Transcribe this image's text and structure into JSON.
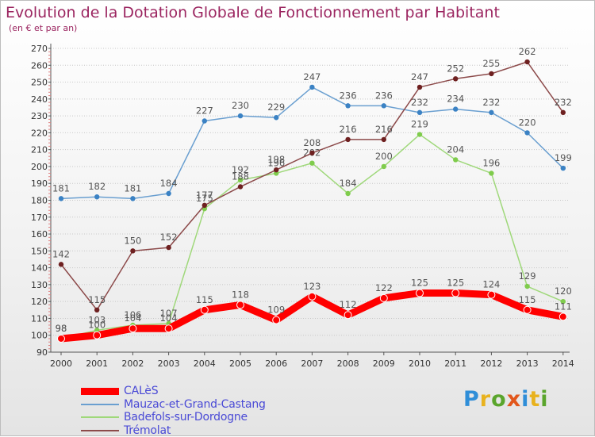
{
  "header": {
    "title": "Evolution de la Dotation Globale de Fonctionnement par Habitant",
    "subtitle": "(en € et par an)"
  },
  "logo_text": "Proxiti",
  "chart_data": {
    "type": "line",
    "title": "Evolution de la Dotation Globale de Fonctionnement par Habitant",
    "subtitle": "(en € et par an)",
    "xlabel": "",
    "ylabel": "",
    "x": [
      "2000",
      "2001",
      "2002",
      "2003",
      "2004",
      "2005",
      "2006",
      "2007",
      "2008",
      "2009",
      "2010",
      "2011",
      "2012",
      "2013",
      "2014"
    ],
    "ylim": [
      90,
      270
    ],
    "yticks": [
      90,
      100,
      110,
      120,
      130,
      140,
      150,
      160,
      170,
      180,
      190,
      200,
      210,
      220,
      230,
      240,
      250,
      260,
      270
    ],
    "grid": "horizontal dotted",
    "legend_position": "bottom-left",
    "series": [
      {
        "name": "Mauzac-et-Grand-Castang",
        "color": "#6a9fd0",
        "marker_color": "#3b82c4",
        "line_width": 1.5,
        "values": [
          181,
          182,
          181,
          184,
          227,
          230,
          229,
          247,
          236,
          236,
          232,
          234,
          232,
          220,
          199
        ]
      },
      {
        "name": "Badefols-sur-Dordogne",
        "color": "#9fd87a",
        "marker_color": "#7fcc4c",
        "line_width": 1.5,
        "values": [
          98,
          103,
          106,
          107,
          175,
          192,
          196,
          202,
          184,
          200,
          219,
          204,
          196,
          129,
          120
        ]
      },
      {
        "name": "Trémolat",
        "color": "#8c4a4a",
        "marker_color": "#6e2020",
        "line_width": 1.5,
        "values": [
          142,
          115,
          150,
          152,
          177,
          188,
          198,
          208,
          216,
          216,
          247,
          252,
          255,
          262,
          232
        ]
      },
      {
        "name": "CALèS",
        "color": "#ff0000",
        "marker_color": "#ff0000",
        "line_width": 9,
        "values": [
          98,
          100,
          104,
          104,
          115,
          118,
          109,
          123,
          112,
          122,
          125,
          125,
          124,
          115,
          111
        ]
      }
    ],
    "legend_order": [
      "CALèS",
      "Mauzac-et-Grand-Castang",
      "Badefols-sur-Dordogne",
      "Trémolat"
    ]
  }
}
